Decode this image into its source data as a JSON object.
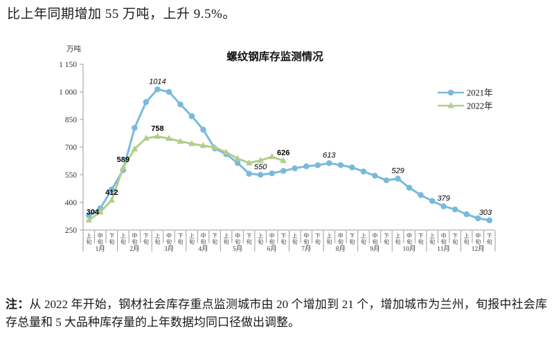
{
  "header": {
    "text": "比上年同期增加 55 万吨，上升 9.5%。"
  },
  "note": {
    "label": "注：",
    "text": "从 2022 年开始，钢材社会库存重点监测城市由 20 个增加到 21 个，增加城市为兰州，旬报中社会库存总量和 5 大品种库存量的上年数据均同口径做出调整。"
  },
  "chart_data": {
    "type": "line",
    "title": "螺纹钢库存监测情况",
    "unit_label": "万吨",
    "grid": false,
    "legend_position": "right-top",
    "ylim": [
      250,
      1150
    ],
    "y_ticks": [
      250,
      400,
      550,
      700,
      850,
      1000,
      1150
    ],
    "y_tick_labels": [
      "250",
      "400",
      "550",
      "700",
      "850",
      "1 000",
      "1 150"
    ],
    "months": [
      "1月",
      "2月",
      "3月",
      "4月",
      "5月",
      "6月",
      "7月",
      "8月",
      "9月",
      "10月",
      "11月",
      "12月"
    ],
    "period_labels": [
      "上旬",
      "中旬",
      "下旬"
    ],
    "legend": [
      "2021年",
      "2022年"
    ],
    "series": [
      {
        "name": "2021年",
        "color": "#79badb",
        "marker": "circle",
        "label_style": "italic",
        "values": [
          330,
          368,
          470,
          575,
          805,
          945,
          1014,
          1000,
          932,
          868,
          795,
          693,
          662,
          614,
          556,
          550,
          558,
          571,
          585,
          596,
          602,
          613,
          603,
          590,
          568,
          545,
          520,
          529,
          480,
          440,
          408,
          379,
          362,
          336,
          314,
          303
        ],
        "point_labels": {
          "6": "1014",
          "15": "550",
          "21": "613",
          "27": "529",
          "31": "379",
          "35": "303"
        }
      },
      {
        "name": "2022年",
        "color": "#b3cc8b",
        "marker": "triangle",
        "label_style": "bold",
        "values": [
          304,
          348,
          412,
          589,
          690,
          748,
          758,
          747,
          731,
          719,
          708,
          699,
          672,
          638,
          614,
          628,
          648,
          626
        ],
        "point_labels": {
          "0": "304",
          "2": "412",
          "3": "589",
          "6": "758",
          "17": "626"
        }
      }
    ]
  }
}
